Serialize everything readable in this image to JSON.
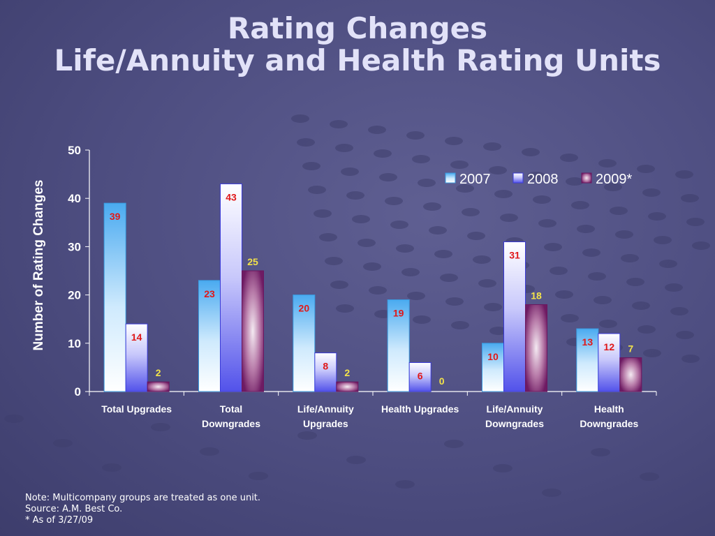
{
  "slide": {
    "title_line1": "Rating Changes",
    "title_line2": "Life/Annuity and Health Rating Units"
  },
  "notes": [
    "Note: Multicompany groups are treated as one unit.",
    "Source: A.M. Best Co.",
    "* As of 3/27/09"
  ],
  "chart_data": {
    "type": "bar",
    "ylabel": "Number of Rating Changes",
    "ylim": [
      0,
      50
    ],
    "yticks": [
      0,
      10,
      20,
      30,
      40,
      50
    ],
    "legend_position": "top-right",
    "categories": [
      [
        "Total Upgrades"
      ],
      [
        "Total",
        "Downgrades"
      ],
      [
        "Life/Annuity",
        "Upgrades"
      ],
      [
        "Health Upgrades"
      ],
      [
        "Life/Annuity",
        "Downgrades"
      ],
      [
        "Health",
        "Downgrades"
      ]
    ],
    "series": [
      {
        "name": "2007",
        "values": [
          39,
          23,
          20,
          19,
          10,
          13
        ],
        "color": "#5ab4ee",
        "label_color": "#e01818"
      },
      {
        "name": "2008",
        "values": [
          14,
          43,
          8,
          6,
          31,
          12
        ],
        "color": "#5a5aee",
        "label_color": "#e01818"
      },
      {
        "name": "2009*",
        "values": [
          2,
          25,
          2,
          0,
          18,
          7
        ],
        "color": "#7a1f6e",
        "label_color": "#f2e24a"
      }
    ]
  }
}
